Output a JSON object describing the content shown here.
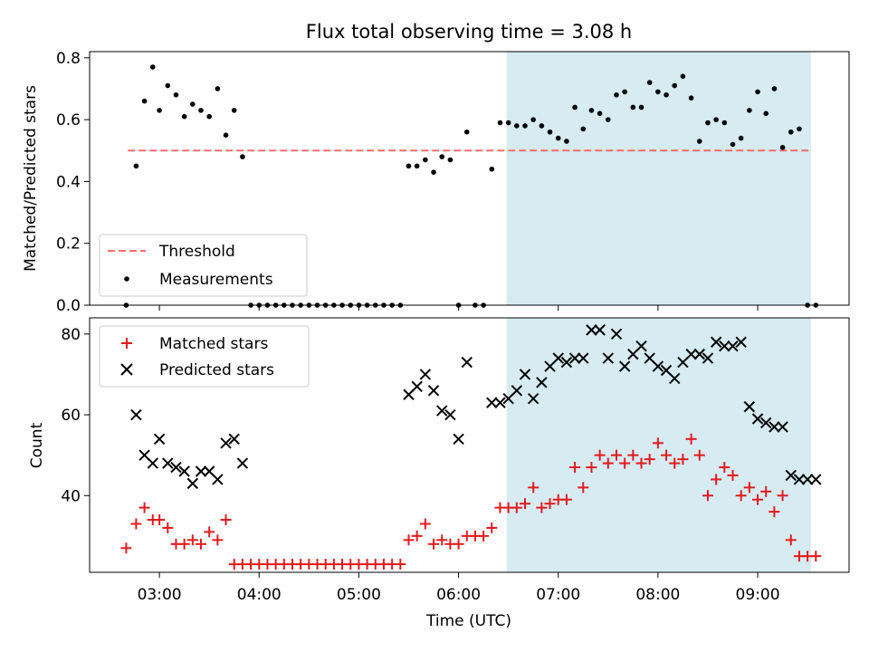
{
  "title": "Flux total observing time = 3.08 h",
  "colors": {
    "threshold": "#ff6b6b",
    "measurements": "#000000",
    "matched": "#e41a1c",
    "predicted": "#000000",
    "highlight": "#add8e6"
  },
  "chart_data": [
    {
      "type": "scatter",
      "ylabel": "Matched/Predicted stars",
      "xlim": [
        "02:18",
        "09:55"
      ],
      "ylim": [
        0,
        0.82
      ],
      "yticks": [
        0.0,
        0.2,
        0.4,
        0.6,
        0.8
      ],
      "ytick_labels": [
        "0.0",
        "0.2",
        "0.4",
        "0.6",
        "0.8"
      ],
      "highlight_range": [
        "06:29",
        "09:32"
      ],
      "legend": {
        "position": "lower-left",
        "entries": [
          "Threshold",
          "Measurements"
        ]
      },
      "threshold": {
        "name": "Threshold",
        "value": 0.5,
        "x_range": [
          "02:41",
          "09:32"
        ]
      },
      "series": [
        {
          "name": "Measurements",
          "x": [
            "02:40",
            "02:46",
            "02:51",
            "02:56",
            "03:00",
            "03:05",
            "03:10",
            "03:15",
            "03:20",
            "03:25",
            "03:30",
            "03:35",
            "03:40",
            "03:45",
            "03:50",
            "03:55",
            "04:00",
            "04:05",
            "04:10",
            "04:15",
            "04:20",
            "04:25",
            "04:30",
            "04:35",
            "04:40",
            "04:45",
            "04:50",
            "04:55",
            "05:00",
            "05:05",
            "05:10",
            "05:15",
            "05:20",
            "05:25",
            "05:30",
            "05:35",
            "05:40",
            "05:45",
            "05:50",
            "05:55",
            "06:00",
            "06:05",
            "06:10",
            "06:15",
            "06:20",
            "06:25",
            "06:30",
            "06:35",
            "06:40",
            "06:45",
            "06:50",
            "06:55",
            "07:00",
            "07:05",
            "07:10",
            "07:15",
            "07:20",
            "07:25",
            "07:30",
            "07:35",
            "07:40",
            "07:45",
            "07:50",
            "07:55",
            "08:00",
            "08:05",
            "08:10",
            "08:15",
            "08:20",
            "08:25",
            "08:30",
            "08:35",
            "08:40",
            "08:45",
            "08:50",
            "08:55",
            "09:00",
            "09:05",
            "09:10",
            "09:15",
            "09:20",
            "09:25",
            "09:30",
            "09:35"
          ],
          "y": [
            0.0,
            0.45,
            0.66,
            0.77,
            0.63,
            0.71,
            0.68,
            0.61,
            0.65,
            0.63,
            0.61,
            0.7,
            0.55,
            0.63,
            0.48,
            0.0,
            0.0,
            0.0,
            0.0,
            0.0,
            0.0,
            0.0,
            0.0,
            0.0,
            0.0,
            0.0,
            0.0,
            0.0,
            0.0,
            0.0,
            0.0,
            0.0,
            0.0,
            0.0,
            0.45,
            0.45,
            0.47,
            0.43,
            0.48,
            0.47,
            0.0,
            0.56,
            0.0,
            0.0,
            0.44,
            0.59,
            0.59,
            0.58,
            0.58,
            0.6,
            0.58,
            0.56,
            0.54,
            0.53,
            0.64,
            0.57,
            0.63,
            0.62,
            0.6,
            0.68,
            0.69,
            0.64,
            0.64,
            0.72,
            0.69,
            0.68,
            0.71,
            0.74,
            0.67,
            0.53,
            0.59,
            0.6,
            0.59,
            0.52,
            0.54,
            0.63,
            0.69,
            0.62,
            0.7,
            0.51,
            0.56,
            0.57,
            0.0,
            0.0
          ]
        }
      ]
    },
    {
      "type": "scatter",
      "xlabel": "Time (UTC)",
      "ylabel": "Count",
      "xlim": [
        "02:18",
        "09:55"
      ],
      "ylim": [
        21,
        84
      ],
      "yticks": [
        40,
        60,
        80
      ],
      "ytick_labels": [
        "40",
        "60",
        "80"
      ],
      "xticks": [
        "03:00",
        "04:00",
        "05:00",
        "06:00",
        "07:00",
        "08:00",
        "09:00"
      ],
      "highlight_range": [
        "06:29",
        "09:32"
      ],
      "legend": {
        "position": "upper-left",
        "entries": [
          "Matched stars",
          "Predicted stars"
        ]
      },
      "series": [
        {
          "name": "Matched stars",
          "marker": "plus",
          "x": [
            "02:40",
            "02:46",
            "02:51",
            "02:56",
            "03:00",
            "03:05",
            "03:10",
            "03:15",
            "03:20",
            "03:25",
            "03:30",
            "03:35",
            "03:40",
            "03:45",
            "03:50",
            "03:55",
            "04:00",
            "04:05",
            "04:10",
            "04:15",
            "04:20",
            "04:25",
            "04:30",
            "04:35",
            "04:40",
            "04:45",
            "04:50",
            "04:55",
            "05:00",
            "05:05",
            "05:10",
            "05:15",
            "05:20",
            "05:25",
            "05:30",
            "05:35",
            "05:40",
            "05:45",
            "05:50",
            "05:55",
            "06:00",
            "06:05",
            "06:10",
            "06:15",
            "06:20",
            "06:25",
            "06:30",
            "06:35",
            "06:40",
            "06:45",
            "06:50",
            "06:55",
            "07:00",
            "07:05",
            "07:10",
            "07:15",
            "07:20",
            "07:25",
            "07:30",
            "07:35",
            "07:40",
            "07:45",
            "07:50",
            "07:55",
            "08:00",
            "08:05",
            "08:10",
            "08:15",
            "08:20",
            "08:25",
            "08:30",
            "08:35",
            "08:40",
            "08:45",
            "08:50",
            "08:55",
            "09:00",
            "09:05",
            "09:10",
            "09:15",
            "09:20",
            "09:25",
            "09:30",
            "09:35"
          ],
          "y": [
            27,
            33,
            37,
            34,
            34,
            32,
            28,
            28,
            29,
            28,
            31,
            29,
            34,
            23,
            23,
            23,
            23,
            23,
            23,
            23,
            23,
            23,
            23,
            23,
            23,
            23,
            23,
            23,
            23,
            23,
            23,
            23,
            23,
            23,
            29,
            30,
            33,
            28,
            29,
            28,
            28,
            30,
            30,
            30,
            32,
            37,
            37,
            37,
            38,
            42,
            37,
            38,
            39,
            39,
            47,
            42,
            47,
            50,
            48,
            50,
            48,
            50,
            48,
            49,
            53,
            50,
            48,
            49,
            54,
            50,
            40,
            44,
            47,
            45,
            40,
            42,
            39,
            41,
            36,
            40,
            29,
            25,
            25,
            25
          ]
        },
        {
          "name": "Predicted stars",
          "marker": "x",
          "x": [
            "02:46",
            "02:51",
            "02:56",
            "03:00",
            "03:05",
            "03:10",
            "03:15",
            "03:20",
            "03:25",
            "03:30",
            "03:35",
            "03:40",
            "03:45",
            "03:50",
            "05:30",
            "05:35",
            "05:40",
            "05:45",
            "05:50",
            "05:55",
            "06:00",
            "06:05",
            "06:20",
            "06:25",
            "06:30",
            "06:35",
            "06:40",
            "06:45",
            "06:50",
            "06:55",
            "07:00",
            "07:05",
            "07:10",
            "07:15",
            "07:20",
            "07:25",
            "07:30",
            "07:35",
            "07:40",
            "07:45",
            "07:50",
            "07:55",
            "08:00",
            "08:05",
            "08:10",
            "08:15",
            "08:20",
            "08:25",
            "08:30",
            "08:35",
            "08:40",
            "08:45",
            "08:50",
            "08:55",
            "09:00",
            "09:05",
            "09:10",
            "09:15",
            "09:20",
            "09:25",
            "09:30",
            "09:35"
          ],
          "y": [
            60,
            50,
            48,
            54,
            48,
            47,
            46,
            43,
            46,
            46,
            44,
            53,
            54,
            48,
            65,
            67,
            70,
            66,
            61,
            60,
            54,
            73,
            63,
            63,
            64,
            66,
            70,
            64,
            68,
            72,
            74,
            73,
            74,
            74,
            81,
            81,
            74,
            80,
            72,
            75,
            77,
            74,
            72,
            71,
            69,
            73,
            75,
            75,
            74,
            78,
            77,
            77,
            78,
            62,
            59,
            58,
            57,
            57,
            45,
            44,
            44,
            44
          ]
        }
      ]
    }
  ]
}
